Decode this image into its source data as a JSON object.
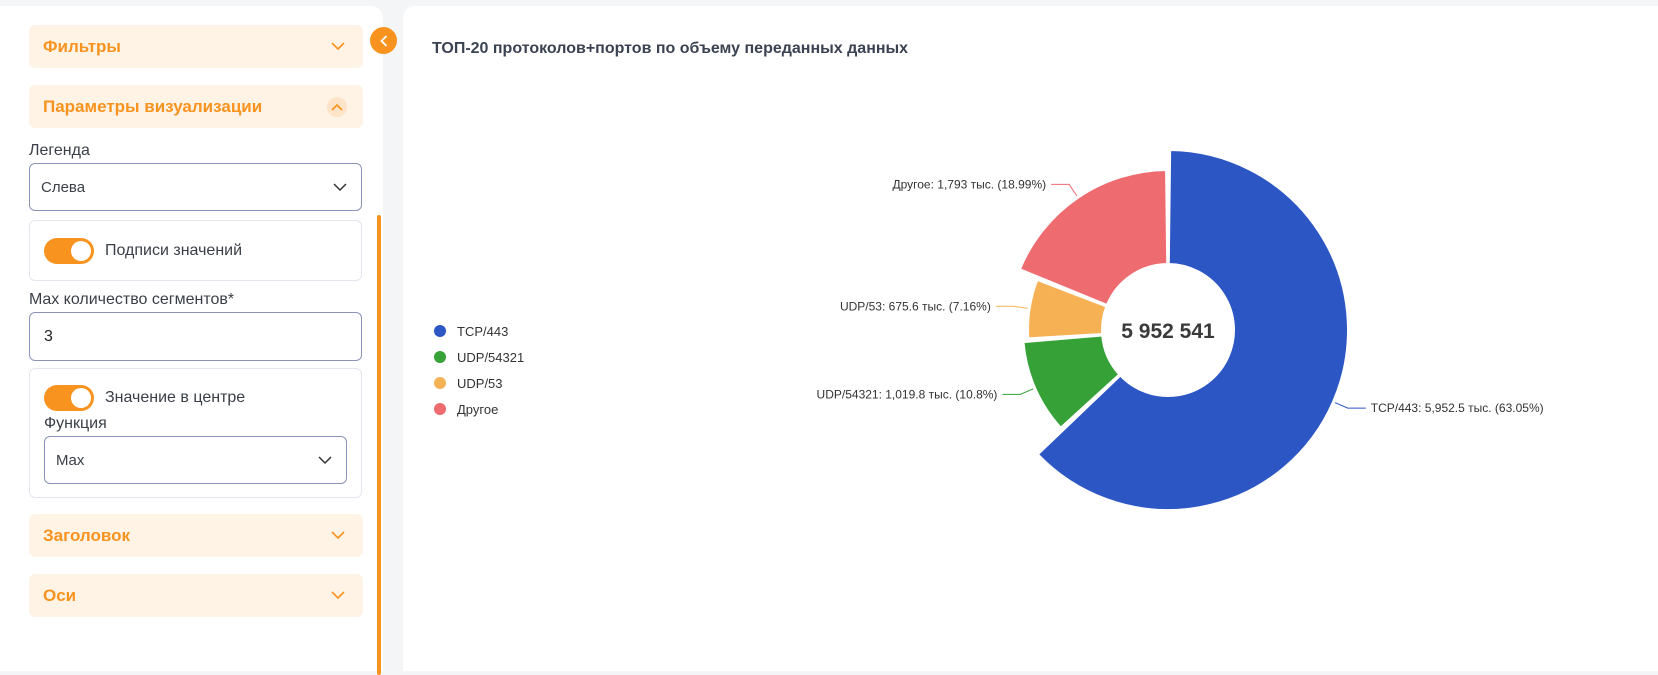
{
  "sidebar": {
    "filters_label": "Фильтры",
    "viz_params_label": "Параметры визуализации",
    "legend": {
      "label": "Легенда",
      "value": "Слева"
    },
    "value_labels_toggle": {
      "label": "Подписи значений",
      "on": true
    },
    "max_segments": {
      "label": "Max количество сегментов*",
      "value": "3"
    },
    "center_value_toggle": {
      "label": "Значение в центре",
      "on": true
    },
    "function": {
      "label": "Функция",
      "value": "Max"
    },
    "title_section_label": "Заголовок",
    "axes_section_label": "Оси"
  },
  "colors": {
    "accent": "#f7931e"
  },
  "chart_data": {
    "type": "pie",
    "title": "ТОП-20 протоколов+портов по объему переданных данных",
    "center_value": "5 952 541",
    "legend_position": "left",
    "categories": [
      "TCP/443",
      "UDP/54321",
      "UDP/53",
      "Другое"
    ],
    "values": [
      5952.5,
      1019.8,
      675.6,
      1793
    ],
    "percents": [
      63.05,
      10.8,
      7.16,
      18.99
    ],
    "colors": [
      "#2c56c4",
      "#36a137",
      "#f7b155",
      "#ee6b70"
    ],
    "data_labels": [
      "TCP/443: 5,952.5 тыс. (63.05%)",
      "UDP/54321: 1,019.8 тыс. (10.8%)",
      "UDP/53: 675.6 тыс. (7.16%)",
      "Другое: 1,793 тыс. (18.99%)"
    ]
  }
}
